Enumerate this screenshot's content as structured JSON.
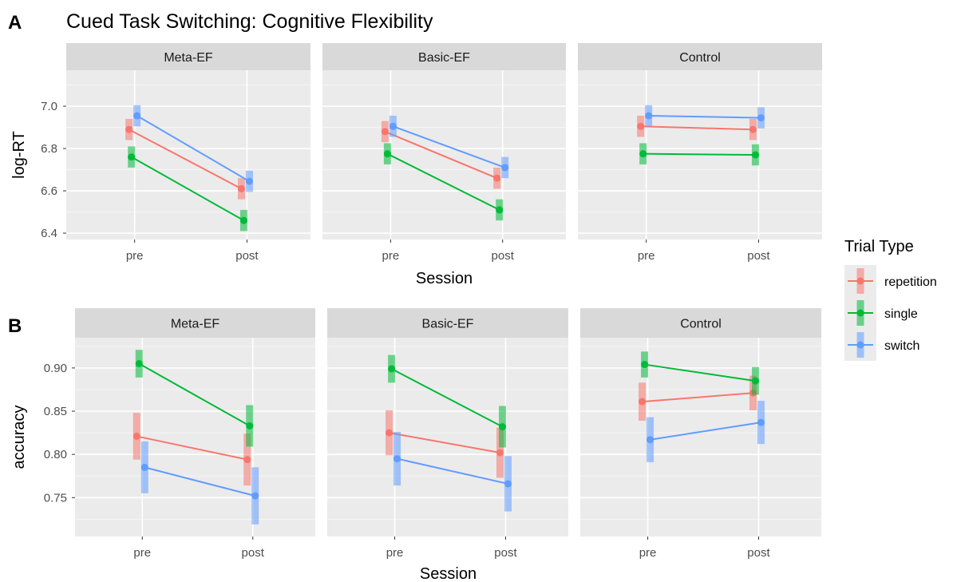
{
  "panel_a": {
    "letter": "A",
    "title": "Cued Task Switching: Cognitive Flexibility"
  },
  "panel_b": {
    "letter": "B"
  },
  "legend": {
    "title": "Trial Type",
    "items": [
      {
        "label": "repetition",
        "color": "#F8766D"
      },
      {
        "label": "single",
        "color": "#00BA38"
      },
      {
        "label": "switch",
        "color": "#619CFF"
      }
    ]
  },
  "chart_data": [
    {
      "type": "line",
      "title": "Cued Task Switching: Cognitive Flexibility",
      "xlabel": "Session",
      "ylabel": "log-RT",
      "categories": [
        "pre",
        "post"
      ],
      "ylim": [
        6.37,
        7.17
      ],
      "yticks": [
        6.4,
        6.6,
        6.8,
        7.0
      ],
      "ytick_labels": [
        "6.4",
        "6.6",
        "6.8",
        "7.0"
      ],
      "grid": true,
      "legend": "right",
      "facets": [
        {
          "name": "Meta-EF",
          "series": [
            {
              "name": "repetition",
              "values": [
                6.89,
                6.61
              ],
              "error": [
                0.05,
                0.05
              ]
            },
            {
              "name": "single",
              "values": [
                6.76,
                6.46
              ],
              "error": [
                0.05,
                0.05
              ]
            },
            {
              "name": "switch",
              "values": [
                6.955,
                6.645
              ],
              "error": [
                0.05,
                0.05
              ]
            }
          ]
        },
        {
          "name": "Basic-EF",
          "series": [
            {
              "name": "repetition",
              "values": [
                6.88,
                6.66
              ],
              "error": [
                0.05,
                0.05
              ]
            },
            {
              "name": "single",
              "values": [
                6.775,
                6.51
              ],
              "error": [
                0.05,
                0.05
              ]
            },
            {
              "name": "switch",
              "values": [
                6.905,
                6.71
              ],
              "error": [
                0.05,
                0.05
              ]
            }
          ]
        },
        {
          "name": "Control",
          "series": [
            {
              "name": "repetition",
              "values": [
                6.905,
                6.89
              ],
              "error": [
                0.05,
                0.05
              ]
            },
            {
              "name": "single",
              "values": [
                6.775,
                6.77
              ],
              "error": [
                0.05,
                0.05
              ]
            },
            {
              "name": "switch",
              "values": [
                6.955,
                6.945
              ],
              "error": [
                0.05,
                0.05
              ]
            }
          ]
        }
      ]
    },
    {
      "type": "line",
      "xlabel": "Session",
      "ylabel": "accuracy",
      "categories": [
        "pre",
        "post"
      ],
      "ylim": [
        0.705,
        0.935
      ],
      "yticks": [
        0.75,
        0.8,
        0.85,
        0.9
      ],
      "ytick_labels": [
        "0.75",
        "0.80",
        "0.85",
        "0.90"
      ],
      "grid": true,
      "legend": "right",
      "facets": [
        {
          "name": "Meta-EF",
          "series": [
            {
              "name": "repetition",
              "values": [
                0.821,
                0.794
              ],
              "error": [
                0.027,
                0.03
              ]
            },
            {
              "name": "single",
              "values": [
                0.905,
                0.833
              ],
              "error": [
                0.016,
                0.024
              ]
            },
            {
              "name": "switch",
              "values": [
                0.785,
                0.752
              ],
              "error": [
                0.03,
                0.033
              ]
            }
          ]
        },
        {
          "name": "Basic-EF",
          "series": [
            {
              "name": "repetition",
              "values": [
                0.825,
                0.802
              ],
              "error": [
                0.026,
                0.029
              ]
            },
            {
              "name": "single",
              "values": [
                0.899,
                0.832
              ],
              "error": [
                0.016,
                0.024
              ]
            },
            {
              "name": "switch",
              "values": [
                0.795,
                0.766
              ],
              "error": [
                0.031,
                0.032
              ]
            }
          ]
        },
        {
          "name": "Control",
          "series": [
            {
              "name": "repetition",
              "values": [
                0.861,
                0.871
              ],
              "error": [
                0.022,
                0.02
              ]
            },
            {
              "name": "single",
              "values": [
                0.904,
                0.885
              ],
              "error": [
                0.015,
                0.016
              ]
            },
            {
              "name": "switch",
              "values": [
                0.817,
                0.837
              ],
              "error": [
                0.026,
                0.025
              ]
            }
          ]
        }
      ]
    }
  ]
}
